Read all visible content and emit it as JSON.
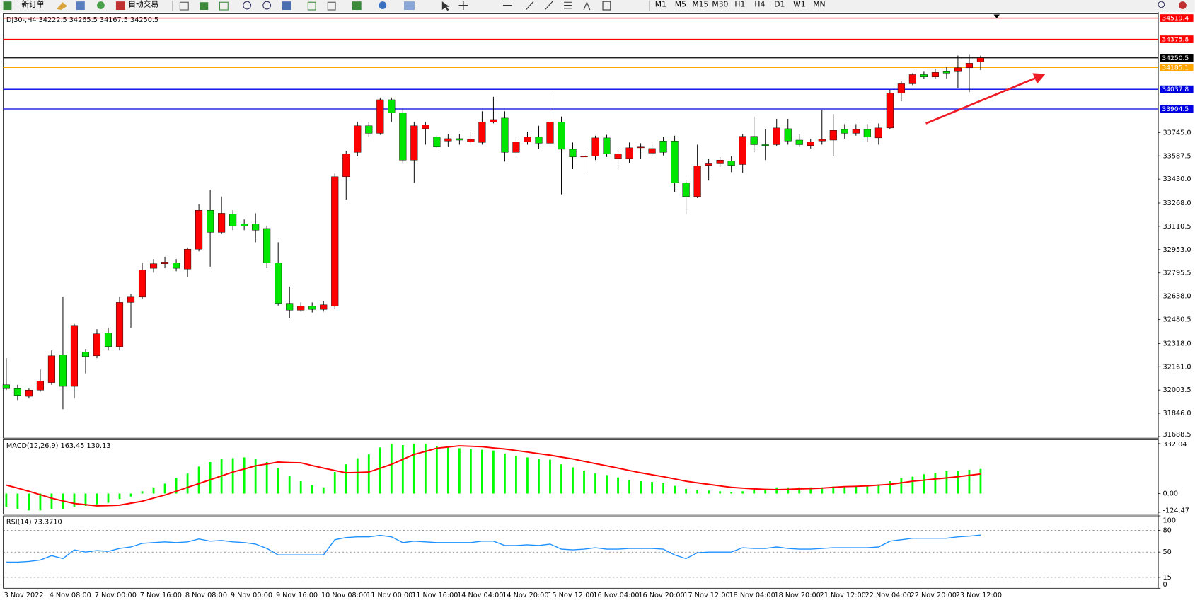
{
  "toolbar": {
    "new_order": "新订单",
    "auto_trading": "自动交易",
    "timeframes": [
      "M1",
      "M5",
      "M15",
      "M30",
      "H1",
      "H4",
      "D1",
      "W1",
      "MN"
    ]
  },
  "chart_data": [
    {
      "type": "candlestick",
      "title": "DJ30-,H4  34222.5 34265.5 34167.5 34250.5",
      "categories": [
        "3 Nov 2022",
        null,
        null,
        null,
        "4 Nov 08:00",
        null,
        null,
        null,
        "7 Nov 00:00",
        null,
        null,
        null,
        "7 Nov 16:00",
        null,
        null,
        null,
        "8 Nov 08:00",
        null,
        null,
        null,
        "9 Nov 00:00",
        null,
        null,
        null,
        "9 Nov 16:00",
        null,
        null,
        null,
        "10 Nov 08:00",
        null,
        null,
        null,
        "11 Nov 00:00",
        null,
        null,
        null,
        "11 Nov 16:00",
        null,
        null,
        null,
        "14 Nov 04:00",
        null,
        null,
        null,
        "14 Nov 20:00",
        null,
        null,
        null,
        "15 Nov 12:00",
        null,
        null,
        null,
        "16 Nov 04:00",
        null,
        null,
        null,
        "16 Nov 20:00",
        null,
        null,
        null,
        "17 Nov 12:00",
        null,
        null,
        null,
        "18 Nov 04:00",
        null,
        null,
        null,
        "18 Nov 20:00",
        null,
        null,
        null,
        "21 Nov 12:00",
        null,
        null,
        null,
        "22 Nov 04:00",
        null,
        null,
        null,
        "22 Nov 20:00",
        null,
        null,
        null,
        "23 Nov 12:00",
        null,
        null
      ],
      "open": [
        32039,
        32013,
        31961,
        32003,
        32054,
        32240,
        32028,
        32260,
        32235,
        32389,
        32297,
        32596,
        32632,
        32827,
        32858,
        32864,
        32822,
        32956,
        33219,
        33070,
        33193,
        33126,
        33126,
        33096,
        32864,
        32590,
        32544,
        32570,
        32549,
        32570,
        33446,
        33611,
        33791,
        33740,
        33967,
        33879,
        33559,
        33771,
        33714,
        33688,
        33704,
        33683,
        33678,
        33817,
        33843,
        33611,
        33683,
        33714,
        33673,
        33817,
        33632,
        33580,
        33585,
        33709,
        33570,
        33570,
        33642,
        33606,
        33688,
        33688,
        33405,
        33312,
        33523,
        33534,
        33554,
        33529,
        33719,
        33663,
        33663,
        33771,
        33694,
        33657,
        33688,
        33694,
        33766,
        33740,
        33766,
        33709,
        33776,
        34013,
        34075,
        34137,
        34121,
        34157,
        34157,
        34183,
        34222.5
      ],
      "high": [
        32219,
        32039,
        32013,
        32142,
        32271,
        32632,
        32451,
        32281,
        32415,
        32425,
        32632,
        32652,
        32864,
        32889,
        32905,
        32889,
        32967,
        33261,
        33358,
        33312,
        33219,
        33157,
        33199,
        33116,
        33003,
        32704,
        32596,
        32596,
        32606,
        33467,
        33621,
        33817,
        33817,
        33982,
        33982,
        33905,
        33817,
        33817,
        33724,
        33735,
        33735,
        33750,
        33889,
        33987,
        33889,
        33714,
        33750,
        33791,
        34023,
        33853,
        33678,
        33611,
        33724,
        33730,
        33637,
        33678,
        33673,
        33663,
        33714,
        33724,
        33425,
        33663,
        33570,
        33580,
        33585,
        33735,
        33853,
        33766,
        33838,
        33838,
        33735,
        33704,
        33895,
        33869,
        33802,
        33802,
        33802,
        33807,
        34034,
        34096,
        34147,
        34157,
        34173,
        34188,
        34266,
        34271,
        34265.5
      ],
      "low": [
        32003,
        31936,
        31946,
        31992,
        32039,
        31874,
        31946,
        32116,
        32219,
        32271,
        32271,
        32425,
        32621,
        32797,
        32827,
        32807,
        32766,
        32941,
        32838,
        33059,
        33085,
        33085,
        33003,
        32827,
        32575,
        32492,
        32534,
        32528,
        32534,
        32554,
        33291,
        33585,
        33714,
        33730,
        33817,
        33534,
        33405,
        33663,
        33642,
        33647,
        33663,
        33663,
        33663,
        33807,
        33549,
        33601,
        33663,
        33637,
        33652,
        33327,
        33498,
        33467,
        33559,
        33580,
        33498,
        33539,
        33570,
        33590,
        33590,
        33343,
        33193,
        33302,
        33420,
        33513,
        33477,
        33472,
        33611,
        33559,
        33652,
        33663,
        33647,
        33637,
        33663,
        33585,
        33704,
        33724,
        33683,
        33663,
        33766,
        33956,
        34065,
        34106,
        34106,
        34111,
        34044,
        34018,
        34167.5
      ],
      "close": [
        32013,
        31967,
        32003,
        32065,
        32235,
        32028,
        32436,
        32230,
        32384,
        32297,
        32596,
        32632,
        32817,
        32858,
        32869,
        32827,
        32956,
        33219,
        33070,
        33199,
        33111,
        33111,
        33085,
        32864,
        32590,
        32544,
        32570,
        32549,
        32580,
        33446,
        33601,
        33791,
        33740,
        33967,
        33879,
        33559,
        33791,
        33797,
        33647,
        33704,
        33694,
        33699,
        33817,
        33833,
        33611,
        33683,
        33714,
        33673,
        33817,
        33632,
        33580,
        33585,
        33709,
        33601,
        33601,
        33642,
        33647,
        33637,
        33611,
        33405,
        33312,
        33518,
        33534,
        33559,
        33523,
        33719,
        33663,
        33657,
        33776,
        33688,
        33663,
        33683,
        33699,
        33760,
        33740,
        33766,
        33714,
        33776,
        34013,
        34075,
        34137,
        34121,
        34152,
        34147,
        34183,
        34214,
        34250.5
      ],
      "up_color": "#ff0000",
      "down_color": "#00e600",
      "ylim": [
        31678,
        34549
      ],
      "yticks": [
        31688.5,
        {
          "value": 31846,
          "label": "31846.0"
        },
        32003.5,
        {
          "value": 32161,
          "label": "32161.0"
        },
        {
          "value": 32318,
          "label": "32318.0"
        },
        32480.5,
        {
          "value": 32638,
          "label": "32638.0"
        },
        32795.5,
        {
          "value": 32953,
          "label": "32953.0"
        },
        33110.5,
        {
          "value": 33268,
          "label": "33268.0"
        },
        {
          "value": 33430,
          "label": "33430.0"
        },
        33587.5,
        {
          "value": 33745,
          "label": "33745.0"
        }
      ],
      "lines": [
        {
          "value": 34519.4,
          "color": "#ff0000"
        },
        {
          "value": 34375.8,
          "color": "#ff0000"
        },
        {
          "value": 34250.5,
          "color": "#000000"
        },
        {
          "value": 34185.1,
          "color": "#ffa500"
        },
        {
          "value": 34037.8,
          "color": "#0000e0"
        },
        {
          "value": 33904.5,
          "color": "#0000e0"
        }
      ]
    },
    {
      "type": "macd",
      "title": "MACD(12,26,9) 163.45 130.13",
      "series": [
        {
          "style": "histogram",
          "color": "#00ff00",
          "values": [
            -87,
            -102,
            -112,
            -112,
            -102,
            -102,
            -87,
            -82,
            -72,
            -61,
            -36,
            -20,
            15,
            41,
            66,
            102,
            133,
            179,
            209,
            230,
            235,
            240,
            230,
            209,
            169,
            117,
            82,
            56,
            41,
            143,
            194,
            235,
            260,
            306,
            332,
            322,
            332,
            332,
            317,
            306,
            301,
            296,
            291,
            286,
            266,
            250,
            240,
            230,
            225,
            194,
            174,
            153,
            133,
            123,
            107,
            92,
            82,
            77,
            72,
            51,
            31,
            26,
            20,
            15,
            10,
            15,
            26,
            31,
            41,
            41,
            41,
            41,
            41,
            46,
            46,
            51,
            51,
            61,
            82,
            102,
            112,
            128,
            138,
            148,
            148,
            158,
            163.45
          ]
        },
        {
          "style": "line",
          "color": "#ff0000",
          "values": [
            56,
            36,
            15,
            -8,
            -31,
            -49,
            -66,
            -74,
            -82,
            -80,
            -77,
            -64,
            -51,
            -30,
            -10,
            15,
            41,
            66,
            92,
            117,
            143,
            163,
            184,
            196,
            209,
            206,
            204,
            186,
            169,
            153,
            138,
            140,
            143,
            168,
            194,
            227,
            260,
            280,
            301,
            309,
            317,
            314,
            311,
            303,
            296,
            286,
            276,
            265,
            255,
            242,
            230,
            214,
            199,
            184,
            169,
            153,
            138,
            125,
            112,
            97,
            82,
            71,
            61,
            51,
            41,
            36,
            31,
            28,
            26,
            28,
            31,
            33,
            36,
            41,
            46,
            48,
            51,
            56,
            61,
            71,
            82,
            89,
            97,
            104,
            112,
            121,
            130.13
          ]
        }
      ],
      "ylim": [
        -138,
        358
      ],
      "yticks": [
        332.04,
        {
          "value": 0,
          "label": "0.00"
        },
        -124.47
      ]
    },
    {
      "type": "line",
      "title": "RSI(14) 73.3710",
      "series": [
        {
          "color": "#1e90ff",
          "values": [
            36,
            36,
            37,
            39,
            45,
            41,
            53,
            50,
            52,
            51,
            55,
            57,
            62,
            63,
            64,
            63,
            64,
            68,
            65,
            66,
            64,
            63,
            61,
            55,
            46,
            46,
            46,
            46,
            46,
            67,
            70,
            71,
            71,
            73,
            71,
            63,
            65,
            64,
            63,
            63,
            63,
            63,
            65,
            65,
            59,
            59,
            60,
            59,
            61,
            54,
            53,
            54,
            56,
            54,
            54,
            55,
            55,
            55,
            54,
            46,
            41,
            49,
            50,
            50,
            50,
            56,
            55,
            55,
            57,
            55,
            54,
            54,
            55,
            56,
            56,
            56,
            56,
            57,
            65,
            67,
            69,
            69,
            69,
            69,
            71,
            72,
            73.371
          ]
        }
      ],
      "ylim": [
        0,
        100
      ],
      "yticks": [
        0,
        15,
        50,
        80,
        100
      ],
      "grid": true
    }
  ]
}
